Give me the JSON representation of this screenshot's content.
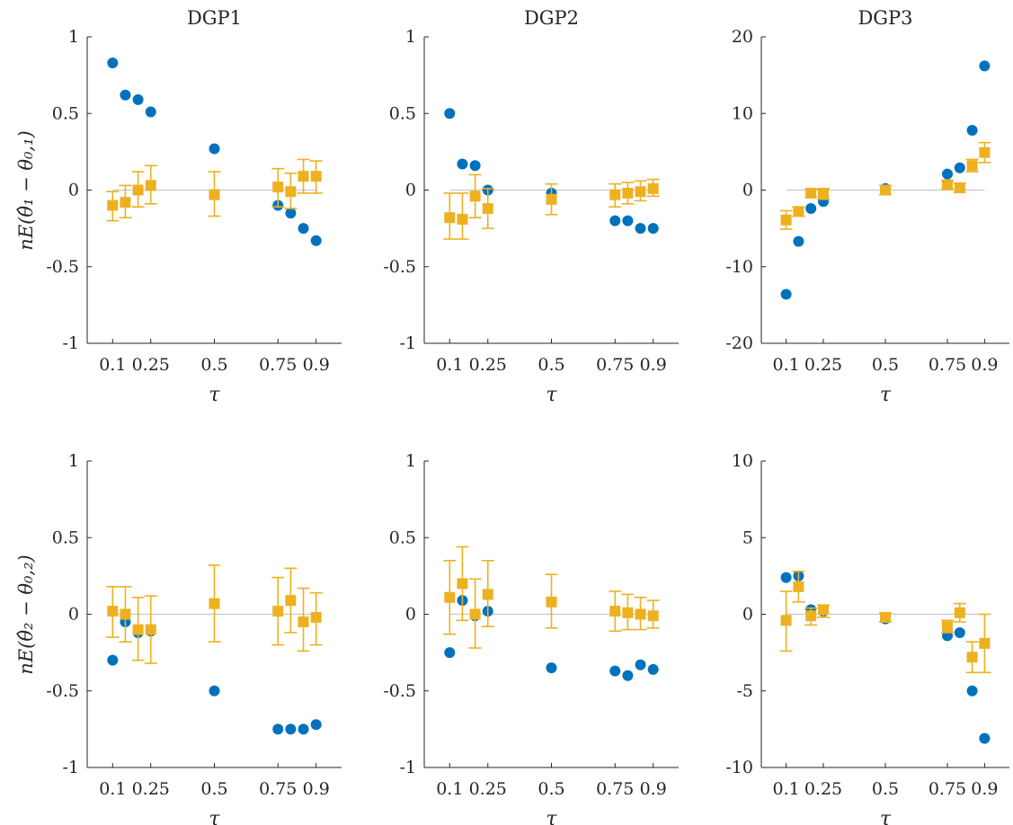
{
  "figure": {
    "ylabels": [
      "nE(θ̂₁ − θ₀,₁)",
      "nE(θ̂₂ − θ₀,₂)"
    ]
  },
  "colors": {
    "circle": "#0072BD",
    "square": "#EDB120",
    "zero_line": "#c8c8c8",
    "axis": "#262626"
  },
  "chart_data": [
    {
      "type": "scatter",
      "title": "DGP1",
      "xlabel": "τ",
      "ylabel": "nE(θ̂₁ − θ₀,₁)",
      "xlim": [
        0.0,
        1.0
      ],
      "ylim": [
        -1,
        1
      ],
      "xticks": [
        0.1,
        0.25,
        0.5,
        0.75,
        0.9
      ],
      "xtick_labels": [
        "0.1",
        "0.25",
        "0.5",
        "0.75",
        "0.9"
      ],
      "yticks": [
        -1,
        -0.5,
        0,
        0.5,
        1
      ],
      "ytick_labels": [
        "-1",
        "-0.5",
        "0",
        "0.5",
        "1"
      ],
      "zero_line": true,
      "grid": false,
      "series": [
        {
          "marker": "circle",
          "x": [
            0.1,
            0.15,
            0.2,
            0.25,
            0.5,
            0.75,
            0.8,
            0.85,
            0.9
          ],
          "y": [
            0.83,
            0.62,
            0.59,
            0.51,
            0.27,
            -0.1,
            -0.15,
            -0.25,
            -0.33
          ]
        },
        {
          "marker": "square",
          "x": [
            0.1,
            0.15,
            0.2,
            0.25,
            0.5,
            0.75,
            0.8,
            0.85,
            0.9
          ],
          "y": [
            -0.1,
            -0.08,
            0.0,
            0.03,
            -0.03,
            0.02,
            -0.01,
            0.09,
            0.09
          ],
          "err_low": [
            -0.2,
            -0.18,
            -0.11,
            -0.09,
            -0.17,
            -0.11,
            -0.12,
            -0.02,
            -0.02
          ],
          "err_high": [
            -0.01,
            0.03,
            0.12,
            0.16,
            0.12,
            0.14,
            0.11,
            0.2,
            0.19
          ]
        }
      ]
    },
    {
      "type": "scatter",
      "title": "DGP2",
      "xlabel": "τ",
      "ylabel": "",
      "xlim": [
        0.0,
        1.0
      ],
      "ylim": [
        -1,
        1
      ],
      "xticks": [
        0.1,
        0.25,
        0.5,
        0.75,
        0.9
      ],
      "xtick_labels": [
        "0.1",
        "0.25",
        "0.5",
        "0.75",
        "0.9"
      ],
      "yticks": [
        -1,
        -0.5,
        0,
        0.5,
        1
      ],
      "ytick_labels": [
        "-1",
        "-0.5",
        "0",
        "0.5",
        "1"
      ],
      "zero_line": true,
      "grid": false,
      "series": [
        {
          "marker": "circle",
          "x": [
            0.1,
            0.15,
            0.2,
            0.25,
            0.5,
            0.75,
            0.8,
            0.85,
            0.9
          ],
          "y": [
            0.5,
            0.17,
            0.16,
            0.0,
            -0.02,
            -0.2,
            -0.2,
            -0.25,
            -0.25
          ]
        },
        {
          "marker": "square",
          "x": [
            0.1,
            0.15,
            0.2,
            0.25,
            0.5,
            0.75,
            0.8,
            0.85,
            0.9
          ],
          "y": [
            -0.18,
            -0.19,
            -0.04,
            -0.12,
            -0.06,
            -0.03,
            -0.02,
            -0.01,
            0.01
          ],
          "err_low": [
            -0.32,
            -0.32,
            -0.18,
            -0.25,
            -0.16,
            -0.11,
            -0.09,
            -0.07,
            -0.04
          ],
          "err_high": [
            -0.02,
            -0.02,
            0.1,
            0.01,
            0.04,
            0.04,
            0.05,
            0.06,
            0.07
          ]
        }
      ]
    },
    {
      "type": "scatter",
      "title": "DGP3",
      "xlabel": "τ",
      "ylabel": "",
      "xlim": [
        0.0,
        1.0
      ],
      "ylim": [
        -20,
        20
      ],
      "xticks": [
        0.1,
        0.25,
        0.5,
        0.75,
        0.9
      ],
      "xtick_labels": [
        "0.1",
        "0.25",
        "0.5",
        "0.75",
        "0.9"
      ],
      "yticks": [
        -20,
        -10,
        0,
        10,
        20
      ],
      "ytick_labels": [
        "-20",
        "-10",
        "0",
        "10",
        "20"
      ],
      "zero_line": true,
      "grid": false,
      "series": [
        {
          "marker": "circle",
          "x": [
            0.1,
            0.15,
            0.2,
            0.25,
            0.5,
            0.75,
            0.8,
            0.85,
            0.9
          ],
          "y": [
            -13.6,
            -6.7,
            -2.4,
            -1.5,
            0.2,
            2.1,
            2.9,
            7.8,
            16.2
          ]
        },
        {
          "marker": "square",
          "x": [
            0.1,
            0.15,
            0.2,
            0.25,
            0.5,
            0.75,
            0.8,
            0.85,
            0.9
          ],
          "y": [
            -3.9,
            -2.8,
            -0.4,
            -0.5,
            0.0,
            0.7,
            0.3,
            3.2,
            4.9
          ],
          "err_low": [
            -5.1,
            -3.4,
            -0.9,
            -1.2,
            -0.6,
            0.2,
            -0.3,
            2.4,
            3.6
          ],
          "err_high": [
            -2.7,
            -2.2,
            0.1,
            0.2,
            0.6,
            1.2,
            0.9,
            4.0,
            6.2
          ]
        }
      ]
    },
    {
      "type": "scatter",
      "title": "",
      "xlabel": "τ",
      "ylabel": "nE(θ̂₂ − θ₀,₂)",
      "xlim": [
        0.0,
        1.0
      ],
      "ylim": [
        -1,
        1
      ],
      "xticks": [
        0.1,
        0.25,
        0.5,
        0.75,
        0.9
      ],
      "xtick_labels": [
        "0.1",
        "0.25",
        "0.5",
        "0.75",
        "0.9"
      ],
      "yticks": [
        -1,
        -0.5,
        0,
        0.5,
        1
      ],
      "ytick_labels": [
        "-1",
        "-0.5",
        "0",
        "0.5",
        "1"
      ],
      "zero_line": true,
      "grid": false,
      "series": [
        {
          "marker": "circle",
          "x": [
            0.1,
            0.15,
            0.2,
            0.25,
            0.5,
            0.75,
            0.8,
            0.85,
            0.9
          ],
          "y": [
            -0.3,
            -0.05,
            -0.12,
            -0.11,
            -0.5,
            -0.75,
            -0.75,
            -0.75,
            -0.72
          ]
        },
        {
          "marker": "square",
          "x": [
            0.1,
            0.15,
            0.2,
            0.25,
            0.5,
            0.75,
            0.8,
            0.85,
            0.9
          ],
          "y": [
            0.02,
            0.0,
            -0.1,
            -0.1,
            0.07,
            0.02,
            0.09,
            -0.05,
            -0.02
          ],
          "err_low": [
            -0.15,
            -0.18,
            -0.3,
            -0.32,
            -0.18,
            -0.2,
            -0.12,
            -0.24,
            -0.2
          ],
          "err_high": [
            0.18,
            0.18,
            0.11,
            0.12,
            0.32,
            0.24,
            0.3,
            0.17,
            0.14
          ]
        }
      ]
    },
    {
      "type": "scatter",
      "title": "",
      "xlabel": "τ",
      "ylabel": "",
      "xlim": [
        0.0,
        1.0
      ],
      "ylim": [
        -1,
        1
      ],
      "xticks": [
        0.1,
        0.25,
        0.5,
        0.75,
        0.9
      ],
      "xtick_labels": [
        "0.1",
        "0.25",
        "0.5",
        "0.75",
        "0.9"
      ],
      "yticks": [
        -1,
        -0.5,
        0,
        0.5,
        1
      ],
      "ytick_labels": [
        "-1",
        "-0.5",
        "0",
        "0.5",
        "1"
      ],
      "zero_line": true,
      "grid": false,
      "series": [
        {
          "marker": "circle",
          "x": [
            0.1,
            0.15,
            0.2,
            0.25,
            0.5,
            0.75,
            0.8,
            0.85,
            0.9
          ],
          "y": [
            -0.25,
            0.09,
            -0.01,
            0.02,
            -0.35,
            -0.37,
            -0.4,
            -0.33,
            -0.36
          ]
        },
        {
          "marker": "square",
          "x": [
            0.1,
            0.15,
            0.2,
            0.25,
            0.5,
            0.75,
            0.8,
            0.85,
            0.9
          ],
          "y": [
            0.11,
            0.2,
            0.0,
            0.13,
            0.08,
            0.02,
            0.01,
            0.0,
            -0.01
          ],
          "err_low": [
            -0.13,
            -0.04,
            -0.22,
            -0.08,
            -0.09,
            -0.11,
            -0.1,
            -0.1,
            -0.09
          ],
          "err_high": [
            0.35,
            0.44,
            0.23,
            0.35,
            0.26,
            0.15,
            0.13,
            0.11,
            0.09
          ]
        }
      ]
    },
    {
      "type": "scatter",
      "title": "",
      "xlabel": "τ",
      "ylabel": "",
      "xlim": [
        0.0,
        1.0
      ],
      "ylim": [
        -10,
        10
      ],
      "xticks": [
        0.1,
        0.25,
        0.5,
        0.75,
        0.9
      ],
      "xtick_labels": [
        "0.1",
        "0.25",
        "0.5",
        "0.75",
        "0.9"
      ],
      "yticks": [
        -10,
        -5,
        0,
        5,
        10
      ],
      "ytick_labels": [
        "-10",
        "-5",
        "0",
        "5",
        "10"
      ],
      "zero_line": true,
      "grid": false,
      "series": [
        {
          "marker": "circle",
          "x": [
            0.1,
            0.15,
            0.2,
            0.25,
            0.5,
            0.75,
            0.8,
            0.85,
            0.9
          ],
          "y": [
            2.4,
            2.5,
            0.3,
            0.2,
            -0.3,
            -1.4,
            -1.2,
            -5.0,
            -8.1
          ]
        },
        {
          "marker": "square",
          "x": [
            0.1,
            0.15,
            0.2,
            0.25,
            0.5,
            0.75,
            0.8,
            0.85,
            0.9
          ],
          "y": [
            -0.4,
            1.8,
            -0.1,
            0.3,
            -0.2,
            -0.8,
            0.1,
            -2.8,
            -1.9
          ],
          "err_low": [
            -2.4,
            0.8,
            -0.7,
            -0.2,
            -0.5,
            -1.2,
            -0.5,
            -3.8,
            -3.8
          ],
          "err_high": [
            1.5,
            2.8,
            0.4,
            0.6,
            0.1,
            -0.4,
            0.7,
            -1.8,
            0.0
          ]
        }
      ]
    }
  ]
}
